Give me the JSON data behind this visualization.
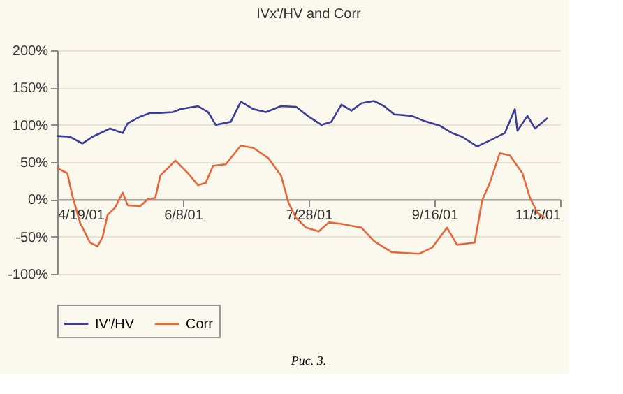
{
  "chart_data": {
    "type": "line",
    "title": "IVx'/HV and Corr",
    "xlim": [
      "2001-04-19",
      "2001-11-05"
    ],
    "xticks": [
      {
        "value": "2001-04-19",
        "label": "4/19/01"
      },
      {
        "value": "2001-06-08",
        "label": "6/8/01"
      },
      {
        "value": "2001-07-28",
        "label": "7/28/01"
      },
      {
        "value": "2001-09-16",
        "label": "9/16/01"
      },
      {
        "value": "2001-11-05",
        "label": "11/5/01"
      }
    ],
    "ylim": [
      -100,
      200
    ],
    "yticks": [
      {
        "value": -100,
        "label": "-100%"
      },
      {
        "value": -50,
        "label": "-50%"
      },
      {
        "value": 0,
        "label": "0%"
      },
      {
        "value": 50,
        "label": "50%"
      },
      {
        "value": 100,
        "label": "100%"
      },
      {
        "value": 150,
        "label": "150%"
      },
      {
        "value": 200,
        "label": "200%"
      }
    ],
    "grid": "y",
    "legend": "bottom",
    "line_style": "solid",
    "annotations": [
      "Рис. 3."
    ],
    "series": [
      {
        "name": "IV'/HV",
        "color": "#3c3c9a",
        "x": [
          "2001-04-19",
          "2001-04-24",
          "2001-04-29",
          "2001-05-03",
          "2001-05-10",
          "2001-05-15",
          "2001-05-17",
          "2001-05-22",
          "2001-05-26",
          "2001-05-30",
          "2001-06-04",
          "2001-06-07",
          "2001-06-14",
          "2001-06-18",
          "2001-06-21",
          "2001-06-27",
          "2001-07-01",
          "2001-07-06",
          "2001-07-11",
          "2001-07-17",
          "2001-07-23",
          "2001-07-28",
          "2001-08-02",
          "2001-08-06",
          "2001-08-10",
          "2001-08-14",
          "2001-08-18",
          "2001-08-23",
          "2001-08-27",
          "2001-08-31",
          "2001-09-07",
          "2001-09-12",
          "2001-09-18",
          "2001-09-23",
          "2001-09-27",
          "2001-10-03",
          "2001-10-08",
          "2001-10-14",
          "2001-10-18",
          "2001-10-19",
          "2001-10-23",
          "2001-10-26",
          "2001-10-31"
        ],
        "values": [
          85,
          84,
          75,
          84,
          95,
          89,
          102,
          111,
          116,
          116,
          117,
          121,
          125,
          117,
          100,
          104,
          131,
          121,
          117,
          125,
          124,
          111,
          100,
          104,
          127,
          119,
          129,
          132,
          125,
          114,
          112,
          105,
          99,
          89,
          84,
          71,
          79,
          89,
          121,
          92,
          112,
          95,
          109
        ]
      },
      {
        "name": "Corr",
        "color": "#e8663a",
        "x": [
          "2001-04-19",
          "2001-04-23",
          "2001-04-25",
          "2001-04-28",
          "2001-05-02",
          "2001-05-05",
          "2001-05-07",
          "2001-05-09",
          "2001-05-12",
          "2001-05-15",
          "2001-05-17",
          "2001-05-22",
          "2001-05-25",
          "2001-05-28",
          "2001-05-30",
          "2001-06-05",
          "2001-06-10",
          "2001-06-14",
          "2001-06-17",
          "2001-06-20",
          "2001-06-25",
          "2001-07-01",
          "2001-07-06",
          "2001-07-12",
          "2001-07-17",
          "2001-07-20",
          "2001-07-23",
          "2001-07-27",
          "2001-08-01",
          "2001-08-05",
          "2001-08-10",
          "2001-08-18",
          "2001-08-23",
          "2001-08-30",
          "2001-09-10",
          "2001-09-15",
          "2001-09-21",
          "2001-09-25",
          "2001-10-02",
          "2001-10-05",
          "2001-10-08",
          "2001-10-12",
          "2001-10-16",
          "2001-10-21",
          "2001-10-24",
          "2001-10-27",
          "2001-10-30"
        ],
        "values": [
          42,
          35,
          5,
          -31,
          -58,
          -63,
          -51,
          -21,
          -11,
          9,
          -8,
          -9,
          0,
          2,
          32,
          52,
          35,
          19,
          22,
          45,
          47,
          72,
          69,
          55,
          32,
          -5,
          -25,
          -38,
          -43,
          -31,
          -33,
          -38,
          -56,
          -71,
          -73,
          -65,
          -38,
          -61,
          -58,
          -1,
          22,
          62,
          59,
          35,
          2,
          -18,
          -25
        ]
      }
    ]
  }
}
